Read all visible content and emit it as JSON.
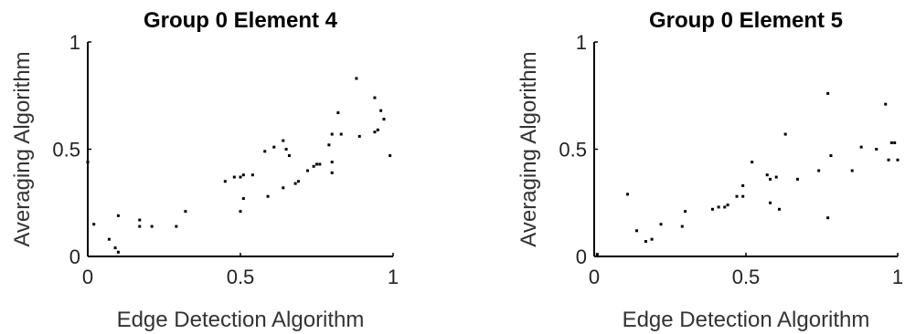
{
  "chart_data": [
    {
      "type": "scatter",
      "title": "Group 0 Element 4",
      "xlabel": "Edge Detection Algorithm",
      "ylabel": "Averaging Algorithm",
      "xlim": [
        0,
        1
      ],
      "ylim": [
        0,
        1
      ],
      "xticks": [
        "0",
        "0.5",
        "1"
      ],
      "yticks": [
        "0",
        "0.5",
        "1"
      ],
      "grid": false,
      "points": [
        [
          0.0,
          0.44
        ],
        [
          0.02,
          0.15
        ],
        [
          0.07,
          0.08
        ],
        [
          0.09,
          0.04
        ],
        [
          0.1,
          0.02
        ],
        [
          0.1,
          0.19
        ],
        [
          0.17,
          0.17
        ],
        [
          0.17,
          0.14
        ],
        [
          0.21,
          0.14
        ],
        [
          0.29,
          0.14
        ],
        [
          0.32,
          0.21
        ],
        [
          0.45,
          0.35
        ],
        [
          0.48,
          0.37
        ],
        [
          0.5,
          0.37
        ],
        [
          0.51,
          0.38
        ],
        [
          0.5,
          0.21
        ],
        [
          0.51,
          0.27
        ],
        [
          0.54,
          0.38
        ],
        [
          0.58,
          0.49
        ],
        [
          0.59,
          0.28
        ],
        [
          0.61,
          0.51
        ],
        [
          0.64,
          0.32
        ],
        [
          0.64,
          0.54
        ],
        [
          0.65,
          0.5
        ],
        [
          0.66,
          0.47
        ],
        [
          0.68,
          0.34
        ],
        [
          0.69,
          0.35
        ],
        [
          0.72,
          0.4
        ],
        [
          0.74,
          0.42
        ],
        [
          0.75,
          0.43
        ],
        [
          0.76,
          0.43
        ],
        [
          0.79,
          0.52
        ],
        [
          0.8,
          0.44
        ],
        [
          0.8,
          0.39
        ],
        [
          0.8,
          0.57
        ],
        [
          0.82,
          0.67
        ],
        [
          0.83,
          0.57
        ],
        [
          0.88,
          0.83
        ],
        [
          0.89,
          0.56
        ],
        [
          0.94,
          0.74
        ],
        [
          0.94,
          0.58
        ],
        [
          0.95,
          0.59
        ],
        [
          0.96,
          0.68
        ],
        [
          0.97,
          0.64
        ],
        [
          0.99,
          0.47
        ]
      ]
    },
    {
      "type": "scatter",
      "title": "Group 0 Element 5",
      "xlabel": "Edge Detection Algorithm",
      "ylabel": "Averaging Algorithm",
      "xlim": [
        0,
        1
      ],
      "ylim": [
        0,
        1
      ],
      "xticks": [
        "0",
        "0.5",
        "1"
      ],
      "yticks": [
        "0",
        "0.5",
        "1"
      ],
      "grid": false,
      "points": [
        [
          0.01,
          0.01
        ],
        [
          0.11,
          0.29
        ],
        [
          0.14,
          0.12
        ],
        [
          0.17,
          0.07
        ],
        [
          0.19,
          0.08
        ],
        [
          0.22,
          0.15
        ],
        [
          0.29,
          0.14
        ],
        [
          0.3,
          0.21
        ],
        [
          0.39,
          0.22
        ],
        [
          0.41,
          0.23
        ],
        [
          0.43,
          0.23
        ],
        [
          0.44,
          0.24
        ],
        [
          0.47,
          0.28
        ],
        [
          0.49,
          0.33
        ],
        [
          0.49,
          0.28
        ],
        [
          0.52,
          0.44
        ],
        [
          0.57,
          0.38
        ],
        [
          0.58,
          0.36
        ],
        [
          0.58,
          0.25
        ],
        [
          0.6,
          0.37
        ],
        [
          0.61,
          0.22
        ],
        [
          0.63,
          0.57
        ],
        [
          0.67,
          0.36
        ],
        [
          0.74,
          0.4
        ],
        [
          0.77,
          0.76
        ],
        [
          0.77,
          0.18
        ],
        [
          0.78,
          0.47
        ],
        [
          0.85,
          0.4
        ],
        [
          0.88,
          0.51
        ],
        [
          0.93,
          0.5
        ],
        [
          0.96,
          0.71
        ],
        [
          0.97,
          0.45
        ],
        [
          0.98,
          0.53
        ],
        [
          0.99,
          0.53
        ],
        [
          1.0,
          0.45
        ]
      ]
    }
  ]
}
